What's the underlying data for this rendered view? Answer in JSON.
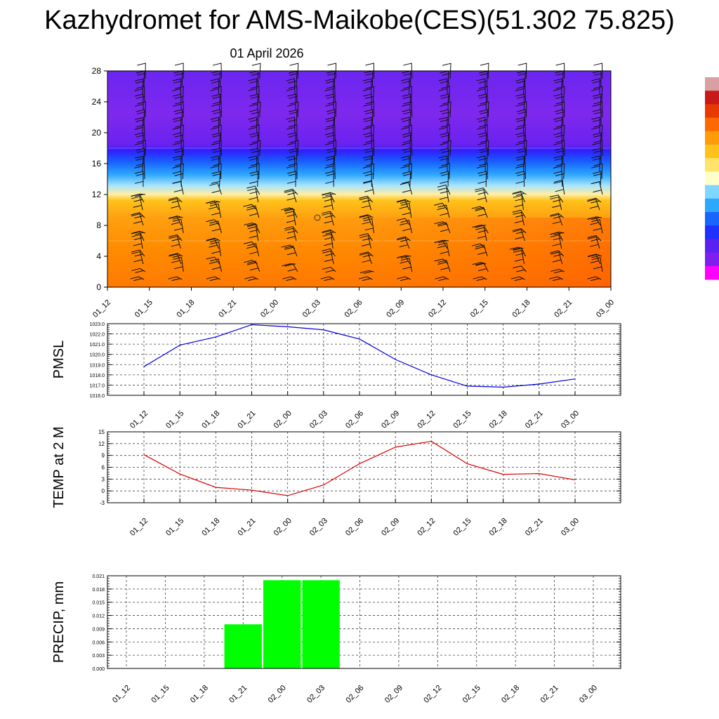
{
  "title": "Kazhydromet for AMS-Maikobe(CES)(51.302 75.825)",
  "date": "01 April 2026",
  "colors": {
    "pmsl_line": "#0000dd",
    "temp_line": "#dd0000",
    "precip_bar": "#00ff00",
    "colorbar": [
      "#ff00ff",
      "#7f1fee",
      "#5a22f0",
      "#2030ff",
      "#1866ff",
      "#2ea8ff",
      "#7fd6ff",
      "#ffffcc",
      "#ffe36a",
      "#ffc21a",
      "#ff9a0a",
      "#ff6a00",
      "#e63a00",
      "#c81a1a",
      "#d8a0a0"
    ]
  },
  "chart_data": [
    {
      "type": "heatmap",
      "name": "cross-section",
      "x": [
        "01_12",
        "01_15",
        "01_18",
        "01_21",
        "02_00",
        "02_03",
        "02_06",
        "02_09",
        "02_12",
        "02_15",
        "02_18",
        "02_21",
        "03_00"
      ],
      "yticks": [
        0,
        4,
        8,
        12,
        16,
        20,
        24,
        28
      ],
      "ylim": [
        0,
        28
      ],
      "bands": [
        {
          "from": 0,
          "to": 6,
          "label": "warm (orange)"
        },
        {
          "from": 6,
          "to": 12,
          "label": "orange-yellow"
        },
        {
          "from": 12,
          "to": 18,
          "label": "blue transition"
        },
        {
          "from": 18,
          "to": 28,
          "label": "violet"
        }
      ],
      "wind_barbs": true
    },
    {
      "type": "line",
      "name": "pmsl",
      "ylabel": "PMSL",
      "x": [
        "01_12",
        "01_15",
        "01_18",
        "01_21",
        "02_00",
        "02_03",
        "02_06",
        "02_09",
        "02_12",
        "02_15",
        "02_18",
        "02_21",
        "03_00"
      ],
      "values": [
        1018.8,
        1020.9,
        1021.7,
        1022.9,
        1022.7,
        1022.4,
        1021.5,
        1019.5,
        1018.0,
        1016.9,
        1016.8,
        1017.1,
        1017.6
      ],
      "ylim": [
        1016.0,
        1023.0
      ],
      "yticks": [
        "1016.0",
        "1017.0",
        "1018.0",
        "1019.0",
        "1020.0",
        "1021.0",
        "1022.0",
        "1023.0"
      ],
      "grid": true
    },
    {
      "type": "line",
      "name": "temp",
      "ylabel": "TEMP at 2 M",
      "x": [
        "01_12",
        "01_15",
        "01_18",
        "01_21",
        "02_00",
        "02_03",
        "02_06",
        "02_09",
        "02_12",
        "02_15",
        "02_18",
        "02_21",
        "03_00"
      ],
      "values": [
        9.2,
        4.3,
        0.9,
        0.2,
        -1.2,
        1.5,
        6.9,
        11.1,
        12.6,
        6.9,
        4.2,
        4.4,
        2.8
      ],
      "ylim": [
        -3,
        15
      ],
      "yticks": [
        "-3",
        "0",
        "3",
        "6",
        "9",
        "12",
        "15"
      ],
      "grid": true
    },
    {
      "type": "bar",
      "name": "precip",
      "ylabel": "PRECIP, mm",
      "categories": [
        "01_12",
        "01_15",
        "01_18",
        "01_21",
        "02_00",
        "02_03",
        "02_06",
        "02_09",
        "02_12",
        "02_15",
        "02_18",
        "02_21",
        "03_00"
      ],
      "values": [
        0,
        0,
        0,
        0.01,
        0.02,
        0.02,
        0,
        0,
        0,
        0,
        0,
        0,
        0
      ],
      "ylim": [
        0,
        0.021
      ],
      "yticks": [
        "0.000",
        "0.003",
        "0.006",
        "0.009",
        "0.012",
        "0.015",
        "0.018",
        "0.021"
      ],
      "grid": true
    }
  ]
}
